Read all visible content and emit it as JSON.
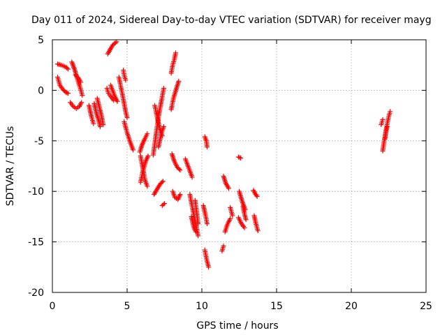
{
  "chart_data": {
    "type": "scatter",
    "title": "Day 011 of 2024, Sidereal Day-to-day VTEC variation (SDTVAR) for receiver mayg",
    "xlabel": "GPS time / hours",
    "ylabel": "SDTVAR / TECUs",
    "xlim": [
      0,
      25
    ],
    "ylim": [
      -20,
      5
    ],
    "xticks": [
      0,
      5,
      10,
      15,
      20,
      25
    ],
    "yticks": [
      5,
      0,
      -5,
      -10,
      -15,
      -20
    ],
    "xtick_labels": [
      "0",
      "5",
      "10",
      "15",
      "20",
      "25"
    ],
    "ytick_labels": [
      "5",
      "0",
      "-5",
      "-10",
      "-15",
      "-20"
    ],
    "grid": true,
    "marker": "plus",
    "color": "#ff0000",
    "series": [
      {
        "name": "SDTVAR",
        "arcs": [
          [
            [
              0.35,
              2.6
            ],
            [
              0.6,
              2.5
            ],
            [
              0.9,
              2.3
            ],
            [
              1.05,
              2.1
            ]
          ],
          [
            [
              0.35,
              1.3
            ],
            [
              0.5,
              0.5
            ],
            [
              0.7,
              0.1
            ],
            [
              0.9,
              -0.2
            ],
            [
              1.05,
              -0.3
            ]
          ],
          [
            [
              1.3,
              2.8
            ],
            [
              1.5,
              2.0
            ],
            [
              1.7,
              1.0
            ],
            [
              1.85,
              0.3
            ],
            [
              2.0,
              -0.5
            ]
          ],
          [
            [
              1.2,
              -1.2
            ],
            [
              1.4,
              -1.6
            ],
            [
              1.6,
              -1.8
            ],
            [
              1.8,
              -1.6
            ],
            [
              1.95,
              -1.2
            ]
          ],
          [
            [
              1.55,
              1.5
            ],
            [
              1.75,
              1.2
            ],
            [
              1.9,
              0.8
            ]
          ],
          [
            [
              2.45,
              -1.5
            ],
            [
              2.55,
              -2.2
            ],
            [
              2.65,
              -2.8
            ],
            [
              2.75,
              -3.3
            ]
          ],
          [
            [
              2.8,
              -1.3
            ],
            [
              2.95,
              -2.3
            ],
            [
              3.1,
              -3.0
            ],
            [
              3.2,
              -3.6
            ]
          ],
          [
            [
              3.0,
              -0.8
            ],
            [
              3.15,
              -1.7
            ],
            [
              3.3,
              -2.6
            ],
            [
              3.4,
              -3.4
            ]
          ],
          [
            [
              3.7,
              3.6
            ],
            [
              3.85,
              4.0
            ],
            [
              4.05,
              4.5
            ],
            [
              4.3,
              4.8
            ]
          ],
          [
            [
              3.65,
              0.2
            ],
            [
              3.75,
              -0.3
            ],
            [
              3.9,
              -0.6
            ],
            [
              4.1,
              -1.0
            ]
          ],
          [
            [
              3.9,
              0.5
            ],
            [
              4.05,
              -0.1
            ],
            [
              4.2,
              -0.7
            ],
            [
              4.35,
              -1.1
            ]
          ],
          [
            [
              4.45,
              1.3
            ],
            [
              4.6,
              0.2
            ],
            [
              4.75,
              -0.9
            ],
            [
              4.9,
              -2.1
            ],
            [
              5.0,
              -2.7
            ]
          ],
          [
            [
              4.75,
              2.0
            ],
            [
              4.8,
              1.5
            ],
            [
              4.9,
              1.0
            ]
          ],
          [
            [
              4.8,
              -3.1
            ],
            [
              5.0,
              -4.2
            ],
            [
              5.2,
              -5.1
            ],
            [
              5.4,
              -5.9
            ]
          ],
          [
            [
              5.85,
              -6.1
            ],
            [
              6.0,
              -5.4
            ],
            [
              6.15,
              -4.9
            ],
            [
              6.35,
              -4.3
            ]
          ],
          [
            [
              5.9,
              -6.5
            ],
            [
              6.05,
              -7.7
            ],
            [
              6.2,
              -8.9
            ],
            [
              6.35,
              -9.5
            ]
          ],
          [
            [
              5.9,
              -9.1
            ],
            [
              6.05,
              -8.0
            ],
            [
              6.25,
              -7.0
            ],
            [
              6.4,
              -6.5
            ]
          ],
          [
            [
              6.75,
              -6.4
            ],
            [
              6.95,
              -4.2
            ],
            [
              7.15,
              -2.2
            ],
            [
              7.35,
              -0.6
            ],
            [
              7.45,
              0.2
            ]
          ],
          [
            [
              6.85,
              -1.5
            ],
            [
              7.0,
              -2.6
            ],
            [
              7.2,
              -3.9
            ],
            [
              7.35,
              -4.5
            ]
          ],
          [
            [
              7.1,
              -5.6
            ],
            [
              7.3,
              -4.2
            ],
            [
              7.45,
              -3.6
            ]
          ],
          [
            [
              6.8,
              -10.3
            ],
            [
              7.0,
              -9.8
            ],
            [
              7.2,
              -9.3
            ],
            [
              7.4,
              -9.0
            ]
          ],
          [
            [
              7.35,
              -11.4
            ],
            [
              7.5,
              -11.2
            ]
          ],
          [
            [
              7.95,
              1.7
            ],
            [
              8.05,
              2.5
            ],
            [
              8.15,
              3.0
            ],
            [
              8.25,
              3.7
            ]
          ],
          [
            [
              8.0,
              -6.3
            ],
            [
              8.15,
              -7.0
            ],
            [
              8.35,
              -7.6
            ],
            [
              8.55,
              -7.9
            ]
          ],
          [
            [
              7.95,
              -1.9
            ],
            [
              8.1,
              -0.8
            ],
            [
              8.3,
              0.2
            ],
            [
              8.45,
              0.9
            ]
          ],
          [
            [
              8.05,
              -10.0
            ],
            [
              8.2,
              -10.6
            ],
            [
              8.4,
              -10.8
            ],
            [
              8.55,
              -10.3
            ]
          ],
          [
            [
              8.9,
              -6.8
            ],
            [
              9.05,
              -7.4
            ],
            [
              9.2,
              -8.0
            ],
            [
              9.35,
              -8.6
            ]
          ],
          [
            [
              9.2,
              -10.3
            ],
            [
              9.35,
              -11.5
            ],
            [
              9.5,
              -12.6
            ],
            [
              9.65,
              -13.6
            ],
            [
              9.75,
              -14.4
            ]
          ],
          [
            [
              9.3,
              -12.5
            ],
            [
              9.45,
              -13.5
            ],
            [
              9.6,
              -14.0
            ]
          ],
          [
            [
              9.55,
              -10.9
            ],
            [
              9.65,
              -12.0
            ],
            [
              9.75,
              -13.2
            ]
          ],
          [
            [
              10.1,
              -11.4
            ],
            [
              10.25,
              -12.4
            ],
            [
              10.35,
              -13.2
            ]
          ],
          [
            [
              10.2,
              -4.6
            ],
            [
              10.3,
              -5.0
            ],
            [
              10.35,
              -5.6
            ]
          ],
          [
            [
              10.2,
              -15.8
            ],
            [
              10.3,
              -16.6
            ],
            [
              10.45,
              -17.5
            ]
          ],
          [
            [
              11.45,
              -8.5
            ],
            [
              11.6,
              -9.2
            ],
            [
              11.8,
              -9.7
            ]
          ],
          [
            [
              11.55,
              -14.0
            ],
            [
              11.7,
              -13.3
            ],
            [
              11.9,
              -12.7
            ]
          ],
          [
            [
              11.35,
              -15.9
            ],
            [
              11.45,
              -15.4
            ]
          ],
          [
            [
              11.9,
              -11.6
            ],
            [
              12.05,
              -12.4
            ]
          ],
          [
            [
              12.45,
              -6.6
            ],
            [
              12.6,
              -6.7
            ]
          ],
          [
            [
              12.5,
              -10.0
            ],
            [
              12.7,
              -11.0
            ],
            [
              12.9,
              -11.8
            ]
          ],
          [
            [
              12.45,
              -12.6
            ],
            [
              12.65,
              -13.2
            ],
            [
              12.85,
              -13.6
            ]
          ],
          [
            [
              12.75,
              -11.5
            ],
            [
              12.85,
              -12.2
            ],
            [
              12.95,
              -12.8
            ]
          ],
          [
            [
              13.5,
              -12.4
            ],
            [
              13.6,
              -13.1
            ],
            [
              13.75,
              -13.9
            ]
          ],
          [
            [
              13.45,
              -9.9
            ],
            [
              13.6,
              -10.3
            ],
            [
              13.7,
              -10.5
            ]
          ],
          [
            [
              22.1,
              -6.0
            ],
            [
              22.2,
              -5.0
            ],
            [
              22.3,
              -4.2
            ],
            [
              22.4,
              -3.6
            ]
          ],
          [
            [
              22.25,
              -4.8
            ],
            [
              22.35,
              -3.7
            ],
            [
              22.5,
              -2.6
            ],
            [
              22.6,
              -2.1
            ]
          ],
          [
            [
              22.0,
              -3.4
            ],
            [
              22.1,
              -2.9
            ]
          ]
        ]
      }
    ]
  }
}
